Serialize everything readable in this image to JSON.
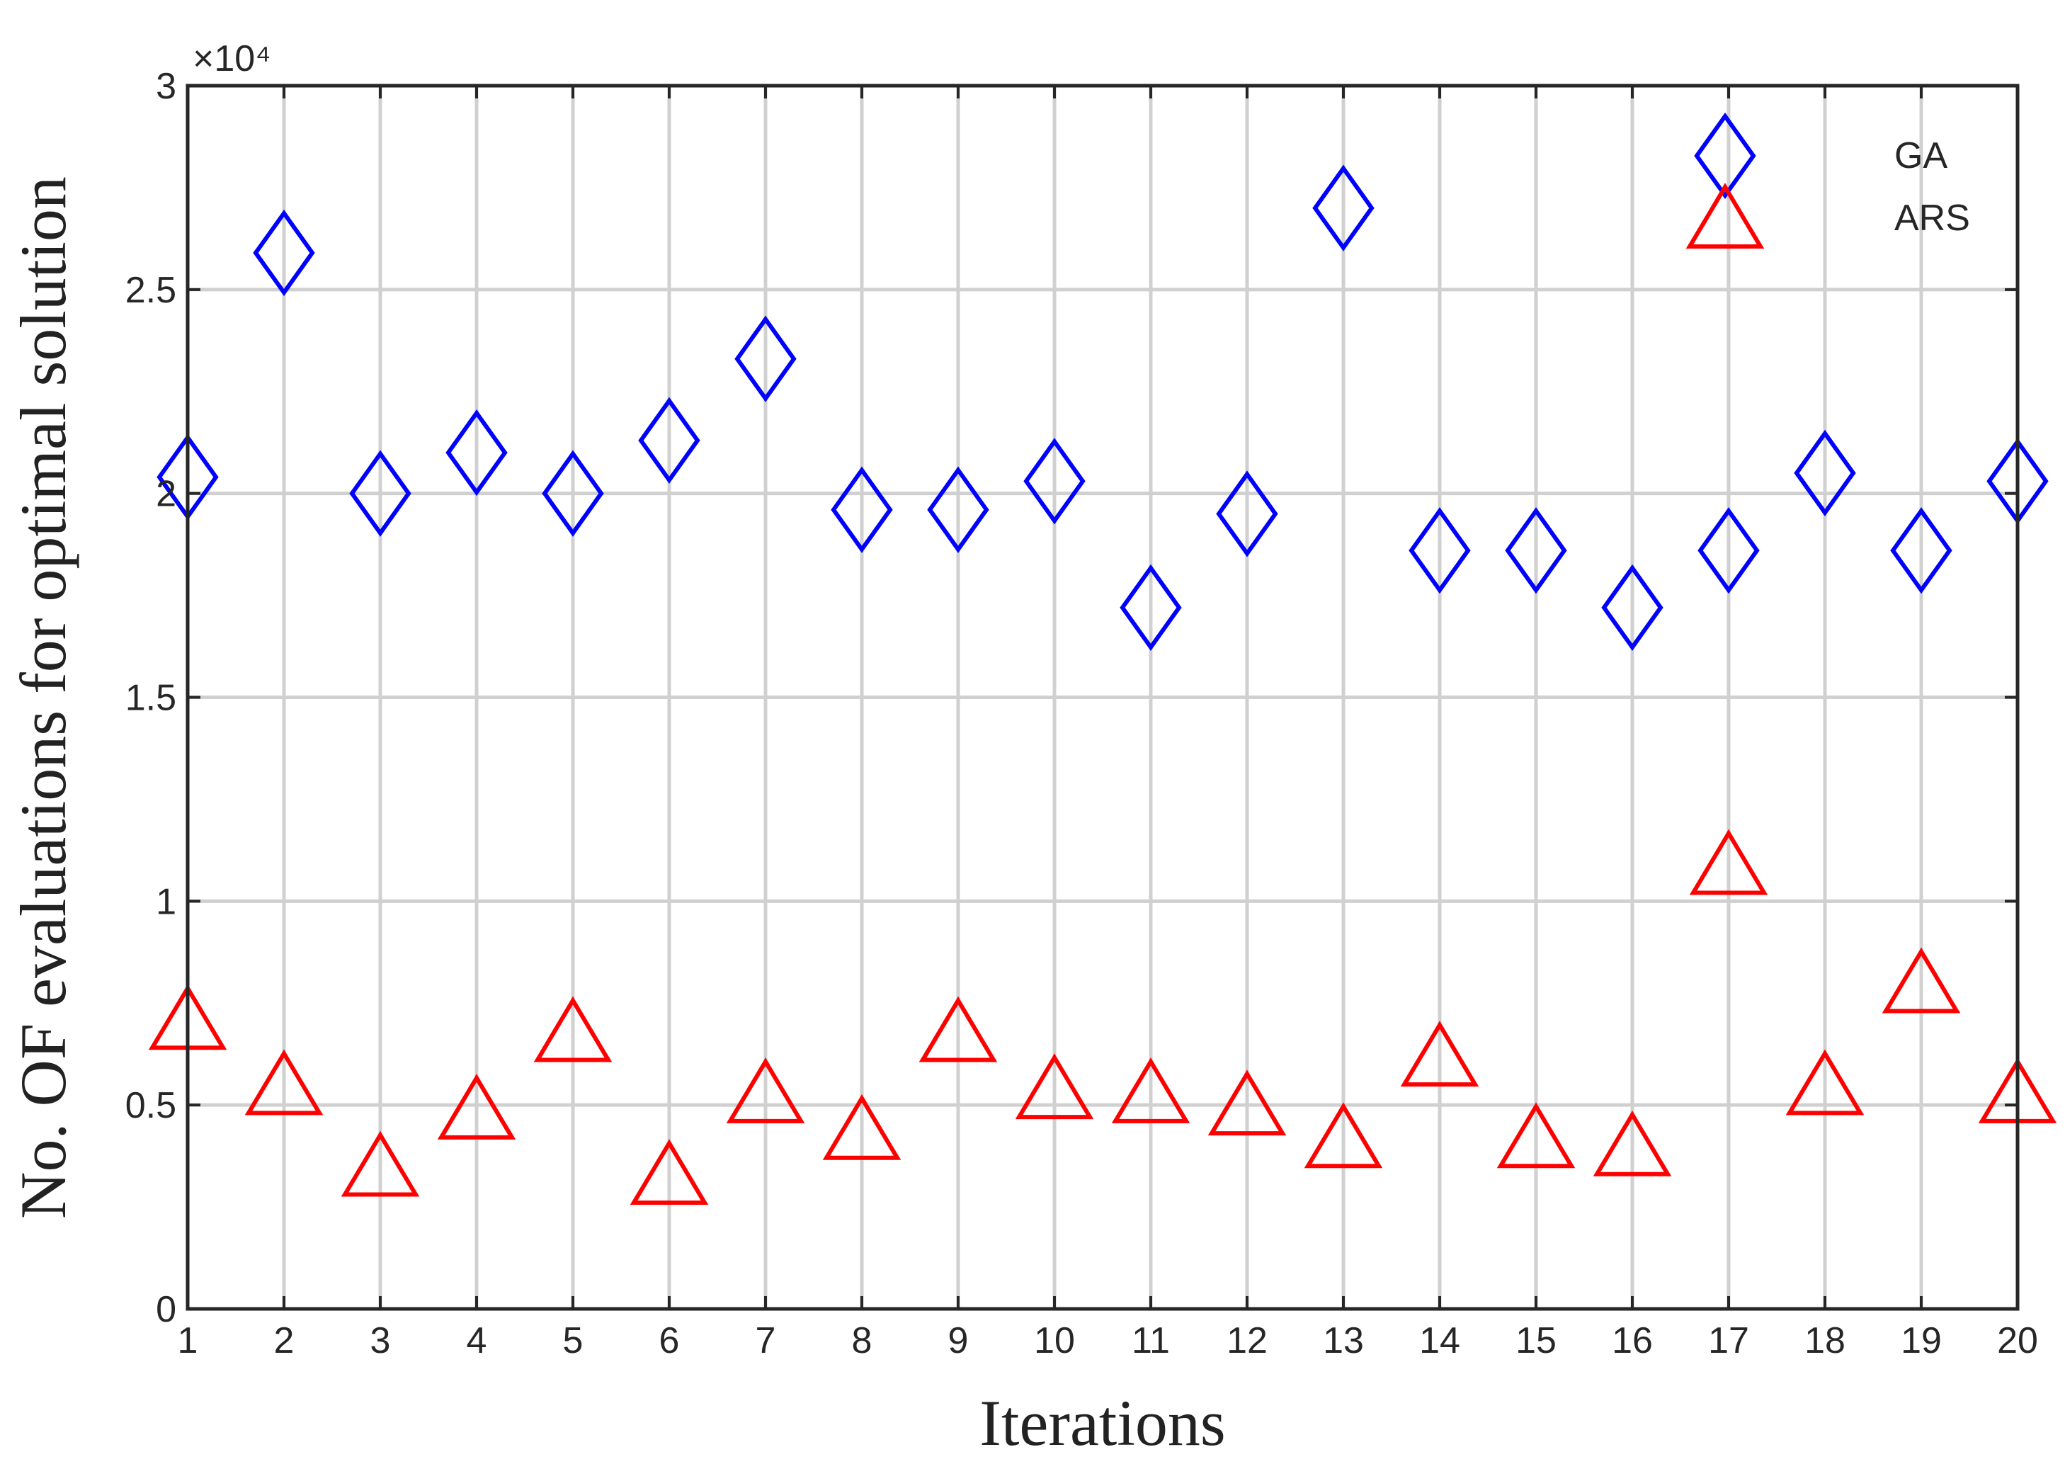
{
  "chart_data": {
    "type": "scatter",
    "xlabel": "Iterations",
    "ylabel": "No. OF evaluations for optimal solution",
    "y_exponent_label": "×10⁴",
    "x": [
      1,
      2,
      3,
      4,
      5,
      6,
      7,
      8,
      9,
      10,
      11,
      12,
      13,
      14,
      15,
      16,
      17,
      18,
      19,
      20
    ],
    "series": [
      {
        "name": "GA",
        "color": "#0000ff",
        "marker": "diamond",
        "values": [
          2.04,
          2.59,
          2.0,
          2.1,
          2.0,
          2.13,
          2.33,
          1.96,
          1.96,
          2.03,
          1.72,
          1.95,
          2.7,
          1.86,
          1.86,
          1.72,
          1.86,
          2.05,
          1.86,
          2.03
        ]
      },
      {
        "name": "ARS",
        "color": "#ff0000",
        "marker": "triangle",
        "values": [
          0.71,
          0.55,
          0.35,
          0.49,
          0.68,
          0.33,
          0.53,
          0.44,
          0.68,
          0.54,
          0.53,
          0.5,
          0.42,
          0.62,
          0.42,
          0.4,
          1.09,
          0.55,
          0.8,
          0.53
        ]
      }
    ],
    "xlim": [
      1,
      20
    ],
    "xticks": [
      1,
      2,
      3,
      4,
      5,
      6,
      7,
      8,
      9,
      10,
      11,
      12,
      13,
      14,
      15,
      16,
      17,
      18,
      19,
      20
    ],
    "ylim": [
      0,
      3
    ],
    "yticks": [
      0,
      0.5,
      1,
      1.5,
      2,
      2.5,
      3
    ],
    "grid": true,
    "legend": "northeast"
  }
}
